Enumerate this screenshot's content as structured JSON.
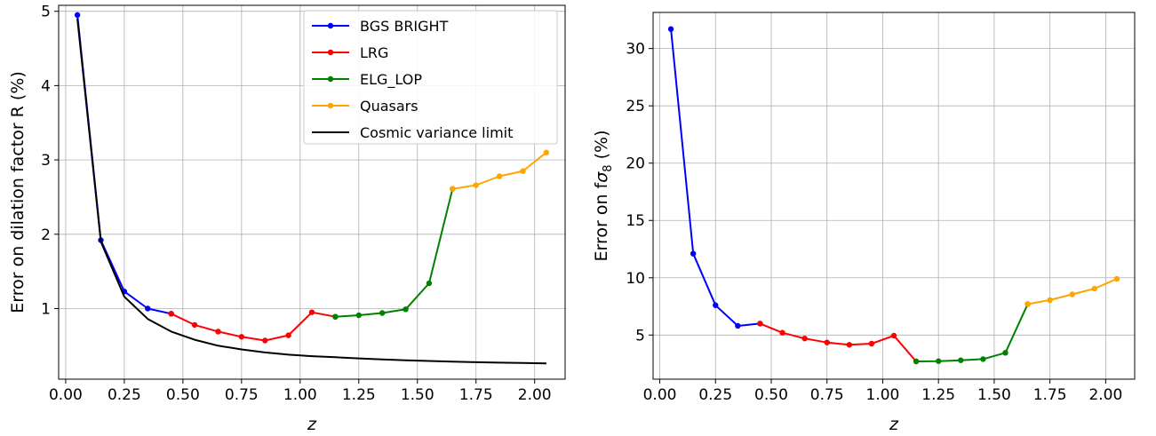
{
  "chart_data": [
    {
      "type": "line",
      "xlabel": "z",
      "ylabel": "Error on dilation factor R (%)",
      "xlim": [
        -0.03,
        2.13
      ],
      "ylim": [
        0.05,
        5.08
      ],
      "xticks": [
        "0.00",
        "0.25",
        "0.50",
        "0.75",
        "1.00",
        "1.25",
        "1.50",
        "1.75",
        "2.00"
      ],
      "yticks": [
        "1",
        "2",
        "3",
        "4",
        "5"
      ],
      "grid": true,
      "legend_position": "top-right",
      "series": [
        {
          "name": "BGS BRIGHT",
          "color": "#0000ff",
          "marker": true,
          "x": [
            0.05,
            0.15,
            0.25,
            0.35,
            0.45
          ],
          "y": [
            4.95,
            1.92,
            1.23,
            1.0,
            0.93
          ]
        },
        {
          "name": "LRG",
          "color": "#ff0000",
          "marker": true,
          "x": [
            0.45,
            0.55,
            0.65,
            0.75,
            0.85,
            0.95,
            1.05,
            1.15
          ],
          "y": [
            0.93,
            0.78,
            0.69,
            0.62,
            0.57,
            0.64,
            0.95,
            0.89
          ]
        },
        {
          "name": "ELG_LOP",
          "color": "#008000",
          "marker": true,
          "x": [
            1.15,
            1.25,
            1.35,
            1.45,
            1.55,
            1.65
          ],
          "y": [
            0.89,
            0.91,
            0.94,
            0.99,
            1.34,
            2.61
          ]
        },
        {
          "name": "Quasars",
          "color": "#ffa500",
          "marker": true,
          "x": [
            1.65,
            1.75,
            1.85,
            1.95,
            2.05
          ],
          "y": [
            2.61,
            2.66,
            2.78,
            2.85,
            3.1
          ]
        },
        {
          "name": "Cosmic variance limit",
          "color": "#000000",
          "marker": false,
          "x": [
            0.05,
            0.15,
            0.25,
            0.35,
            0.45,
            0.55,
            0.65,
            0.75,
            0.85,
            0.95,
            1.05,
            1.15,
            1.25,
            1.35,
            1.45,
            1.55,
            1.65,
            1.75,
            1.85,
            1.95,
            2.05
          ],
          "y": [
            4.9,
            1.9,
            1.16,
            0.86,
            0.69,
            0.58,
            0.5,
            0.45,
            0.41,
            0.38,
            0.36,
            0.345,
            0.33,
            0.315,
            0.305,
            0.295,
            0.285,
            0.278,
            0.272,
            0.267,
            0.263
          ]
        }
      ]
    },
    {
      "type": "line",
      "xlabel": "z",
      "ylabel": "Error on fσ8 (%)",
      "ylabel_main": "Error on f",
      "ylabel_sigma": "σ",
      "ylabel_sub": "8",
      "ylabel_unit": " (%)",
      "xlim": [
        -0.03,
        2.13
      ],
      "ylim": [
        1.15,
        33.15
      ],
      "xticks": [
        "0.00",
        "0.25",
        "0.50",
        "0.75",
        "1.00",
        "1.25",
        "1.50",
        "1.75",
        "2.00"
      ],
      "yticks": [
        "5",
        "10",
        "15",
        "20",
        "25",
        "30"
      ],
      "grid": true,
      "series": [
        {
          "color": "#0000ff",
          "x": [
            0.05,
            0.15,
            0.25,
            0.35,
            0.45
          ],
          "y": [
            31.7,
            12.1,
            7.6,
            5.8,
            6.0
          ]
        },
        {
          "color": "#ff0000",
          "x": [
            0.45,
            0.55,
            0.65,
            0.75,
            0.85,
            0.95,
            1.05,
            1.15
          ],
          "y": [
            6.0,
            5.2,
            4.7,
            4.35,
            4.15,
            4.25,
            4.95,
            2.7
          ]
        },
        {
          "color": "#008000",
          "x": [
            1.15,
            1.25,
            1.35,
            1.45,
            1.55,
            1.65
          ],
          "y": [
            2.7,
            2.72,
            2.8,
            2.9,
            3.45,
            7.7
          ]
        },
        {
          "color": "#ffa500",
          "x": [
            1.65,
            1.75,
            1.85,
            1.95,
            2.05
          ],
          "y": [
            7.7,
            8.05,
            8.55,
            9.05,
            9.9
          ]
        }
      ]
    }
  ]
}
